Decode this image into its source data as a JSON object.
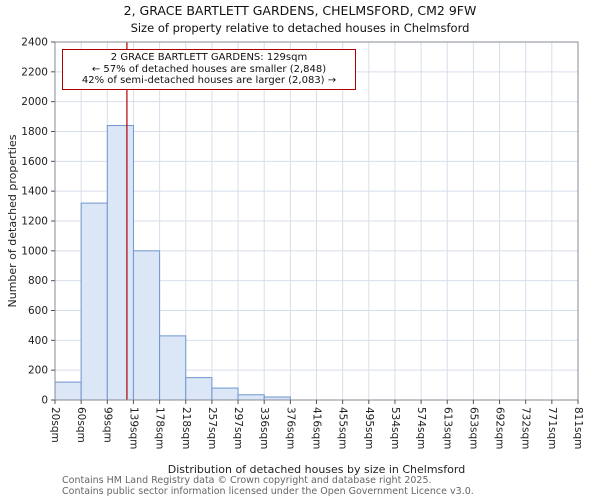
{
  "chart_data": {
    "type": "bar",
    "title": "2, GRACE BARTLETT GARDENS, CHELMSFORD, CM2 9FW",
    "subtitle": "Size of property relative to detached houses in Chelmsford",
    "xlabel": "Distribution of detached houses by size in Chelmsford",
    "ylabel": "Number of detached properties",
    "bin_edges": [
      20,
      60,
      99,
      139,
      178,
      218,
      257,
      297,
      336,
      376,
      416,
      455,
      495,
      534,
      574,
      613,
      653,
      692,
      732,
      771,
      811
    ],
    "tick_labels": [
      "20sqm",
      "60sqm",
      "99sqm",
      "139sqm",
      "178sqm",
      "218sqm",
      "257sqm",
      "297sqm",
      "336sqm",
      "376sqm",
      "416sqm",
      "455sqm",
      "495sqm",
      "534sqm",
      "574sqm",
      "613sqm",
      "653sqm",
      "692sqm",
      "732sqm",
      "771sqm",
      "811sqm"
    ],
    "values": [
      120,
      1320,
      1840,
      1000,
      430,
      150,
      80,
      35,
      20,
      0,
      0,
      0,
      0,
      0,
      0,
      0,
      0,
      0,
      0,
      0
    ],
    "ylim": [
      0,
      2400
    ],
    "yticks": [
      0,
      200,
      400,
      600,
      800,
      1000,
      1200,
      1400,
      1600,
      1800,
      2000,
      2200,
      2400
    ],
    "grid": true,
    "legend": "none",
    "bar_fill": "#dbe6f6",
    "bar_stroke": "#6e96cf",
    "grid_color": "#d7deeb",
    "marker": {
      "value": 129,
      "color": "#b00000"
    }
  },
  "annotation": {
    "line1": "2 GRACE BARTLETT GARDENS: 129sqm",
    "line2": "← 57% of detached houses are smaller (2,848)",
    "line3": "42% of semi-detached houses are larger (2,083) →",
    "border_color": "#b00000"
  },
  "footer": {
    "line1": "Contains HM Land Registry data © Crown copyright and database right 2025.",
    "line2": "Contains public sector information licensed under the Open Government Licence v3.0."
  }
}
